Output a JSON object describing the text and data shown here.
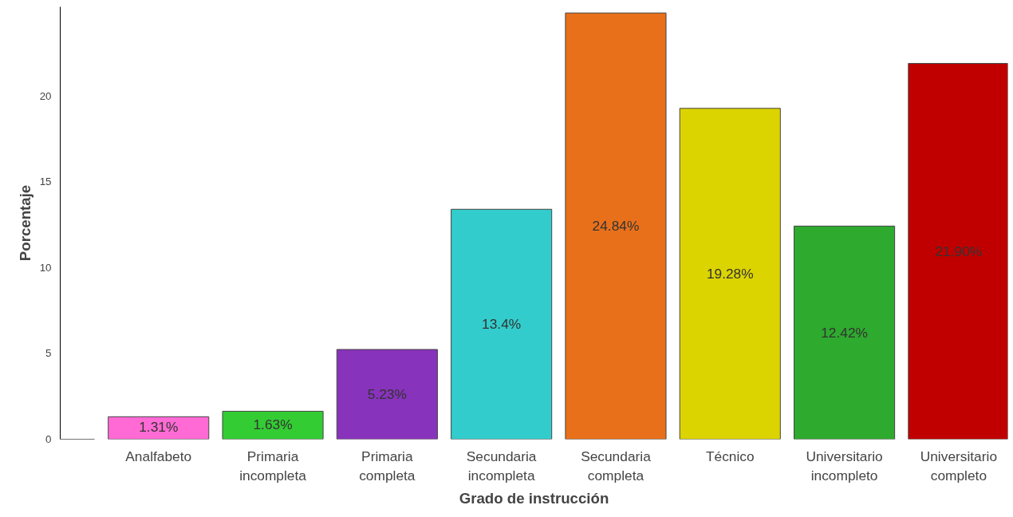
{
  "chart_data": {
    "type": "bar",
    "xlabel": "Grado de instrucción",
    "ylabel": "Porcentaje",
    "categories": [
      null,
      "Analfabeto",
      "Primaria incompleta",
      "Primaria completa",
      "Secundaria incompleta",
      "Secundaria completa",
      "Técnico",
      "Universitario incompleto",
      "Universitario completo"
    ],
    "values": [
      0,
      1.31,
      1.63,
      5.23,
      13.4,
      24.84,
      19.28,
      12.42,
      21.9
    ],
    "value_labels": [
      null,
      "1.31%",
      "1.63%",
      "5.23%",
      "13.4%",
      "24.84%",
      "19.28%",
      "12.42%",
      "21.90%"
    ],
    "colors": [
      "#444444",
      "#ff6ad5",
      "#33cc33",
      "#8833bb",
      "#33cccc",
      "#e8701a",
      "#dcd400",
      "#2eaa2e",
      "#c00000"
    ],
    "ylim": [
      0,
      25.2
    ],
    "yticks": [
      0,
      5,
      10,
      15,
      20
    ],
    "grid": false
  }
}
